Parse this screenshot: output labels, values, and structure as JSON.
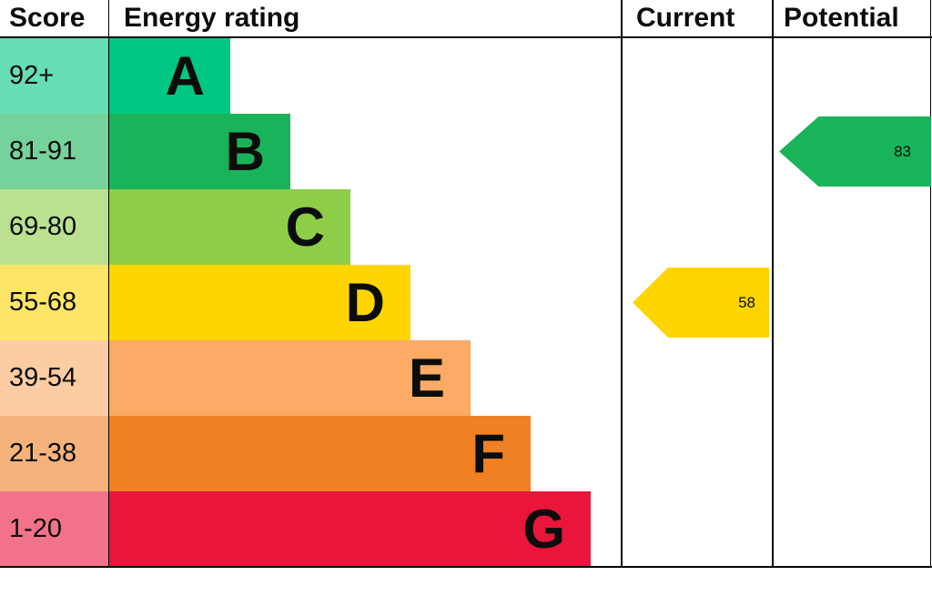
{
  "header": {
    "score": "Score",
    "rating": "Energy rating",
    "current": "Current",
    "potential": "Potential"
  },
  "chart_data": {
    "type": "bar",
    "title": "",
    "categories": [
      "A",
      "B",
      "C",
      "D",
      "E",
      "F",
      "G"
    ],
    "bands": [
      {
        "letter": "A",
        "score": "92+",
        "color": "#00c781",
        "tint": "#66ddb3"
      },
      {
        "letter": "B",
        "score": "81-91",
        "color": "#19b459",
        "tint": "#75d29b"
      },
      {
        "letter": "C",
        "score": "69-80",
        "color": "#8dce46",
        "tint": "#bae190"
      },
      {
        "letter": "D",
        "score": "55-68",
        "color": "#ffd500",
        "tint": "#ffe566"
      },
      {
        "letter": "E",
        "score": "39-54",
        "color": "#fcaa65",
        "tint": "#fdcca3"
      },
      {
        "letter": "F",
        "score": "21-38",
        "color": "#ef8023",
        "tint": "#f5b37b"
      },
      {
        "letter": "G",
        "score": "1-20",
        "color": "#e9153b",
        "tint": "#f27389"
      }
    ],
    "current": {
      "value": "58",
      "band": "D",
      "color": "#ffd500"
    },
    "potential": {
      "value": "83",
      "band": "B",
      "color": "#19b459"
    }
  }
}
